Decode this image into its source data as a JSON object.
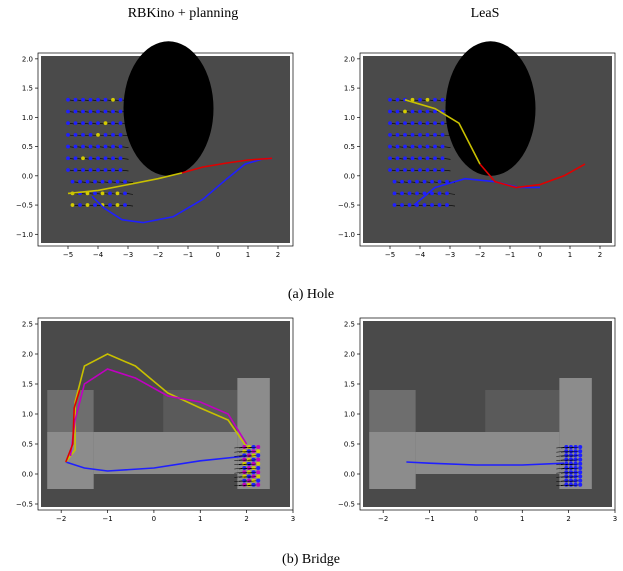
{
  "titles": {
    "left": "RBKino + planning",
    "right": "LeaS"
  },
  "captions": {
    "top": "(a) Hole",
    "bottom": "(b) Bridge"
  },
  "colors": {
    "background": "#4a4a4a",
    "obstacle": "#000000",
    "floor_light": "#8c8c8c",
    "floor_mid": "#6e6e6e",
    "dot_blue": "#1f1fff",
    "dot_yellow": "#d4cc00",
    "path_blue": "#1f1fff",
    "path_red": "#e00000",
    "path_yellow": "#c8c000",
    "path_magenta": "#c000c0",
    "arrow": "#000000"
  },
  "chart_data": [
    {
      "type": "scatter",
      "panel": "hole-left",
      "xlim": [
        -6,
        2.5
      ],
      "ylim": [
        -1.2,
        2.1
      ],
      "xticks": [
        -5,
        -4,
        -3,
        -2,
        -1,
        0,
        1,
        2
      ],
      "yticks": [
        -1.0,
        -0.5,
        0.0,
        0.5,
        1.0,
        1.5,
        2.0
      ],
      "title": "RBKino + planning"
    },
    {
      "type": "scatter",
      "panel": "hole-right",
      "xlim": [
        -6,
        2.5
      ],
      "ylim": [
        -1.2,
        2.1
      ],
      "xticks": [
        -5,
        -4,
        -3,
        -2,
        -1,
        0,
        1,
        2
      ],
      "yticks": [
        -1.0,
        -0.5,
        0.0,
        0.5,
        1.0,
        1.5,
        2.0
      ],
      "title": "LeaS"
    },
    {
      "type": "scatter",
      "panel": "bridge-left",
      "xlim": [
        -2.5,
        3.0
      ],
      "ylim": [
        -0.6,
        2.6
      ],
      "xticks": [
        -2,
        -1,
        0,
        1,
        2,
        3
      ],
      "yticks": [
        -0.5,
        0.0,
        0.5,
        1.0,
        1.5,
        2.0,
        2.5
      ]
    },
    {
      "type": "scatter",
      "panel": "bridge-right",
      "xlim": [
        -2.5,
        3.0
      ],
      "ylim": [
        -0.6,
        2.6
      ],
      "xticks": [
        -2,
        -1,
        0,
        1,
        2,
        3
      ],
      "yticks": [
        -0.5,
        0.0,
        0.5,
        1.0,
        1.5,
        2.0,
        2.5
      ]
    }
  ]
}
